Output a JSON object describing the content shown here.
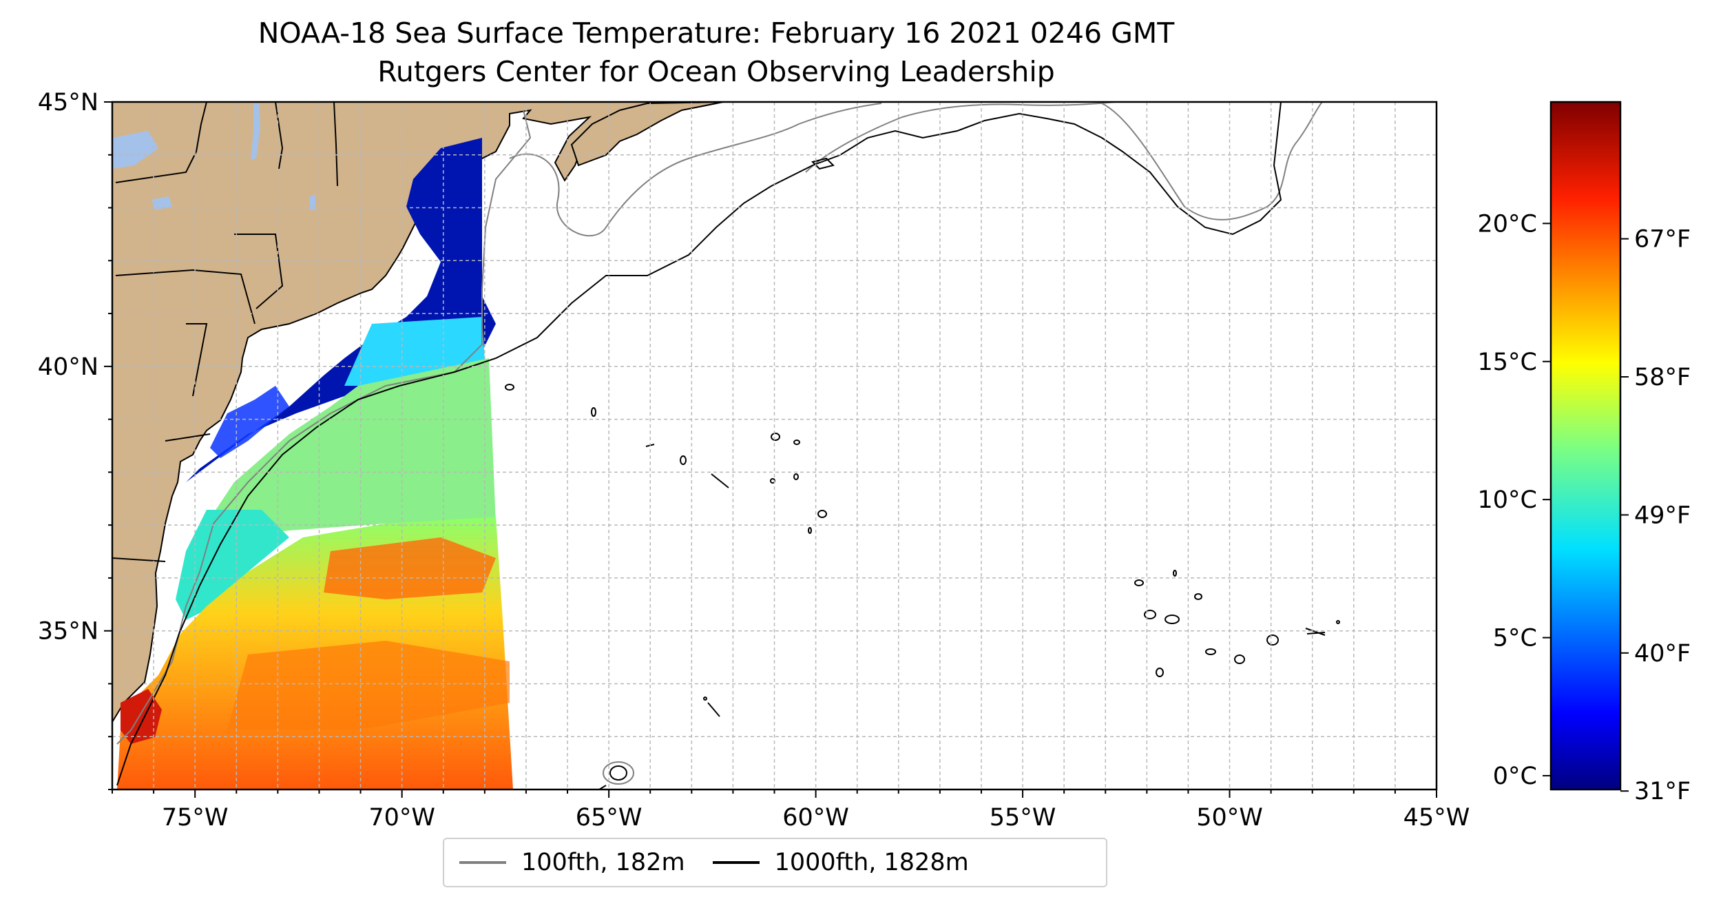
{
  "title": {
    "line1": "NOAA-18 Sea Surface Temperature: February 16 2021 0246 GMT",
    "line2": "Rutgers Center for Ocean Observing Leadership"
  },
  "axes": {
    "lon_labels": [
      "75°W",
      "70°W",
      "65°W",
      "60°W",
      "55°W",
      "50°W",
      "45°W"
    ],
    "lon_values": [
      -75,
      -70,
      -65,
      -60,
      -55,
      -50,
      -45
    ],
    "lat_labels": [
      "45°N",
      "40°N",
      "35°N"
    ],
    "lat_values": [
      45,
      40,
      35
    ],
    "lon_range": [
      -77,
      -45
    ],
    "lat_range": [
      32,
      45
    ],
    "grid": true
  },
  "colorbar": {
    "celsius_labels": [
      "0°C",
      "5°C",
      "10°C",
      "15°C",
      "20°C"
    ],
    "celsius_values": [
      0,
      5,
      10,
      15,
      20
    ],
    "fahrenheit_labels": [
      "31°F",
      "40°F",
      "49°F",
      "58°F",
      "67°F"
    ],
    "fahrenheit_values": [
      31,
      40,
      49,
      58,
      67
    ],
    "range_celsius": [
      -0.5,
      24.4
    ],
    "colormap": "jet"
  },
  "legend": {
    "items": [
      {
        "label": "100fth, 182m",
        "color": "#808080"
      },
      {
        "label": "1000fth, 1828m",
        "color": "#000000"
      }
    ]
  },
  "colors": {
    "land": "#d2b48c",
    "lakes": "#a4c1ea",
    "grid": "#b8b8b8"
  }
}
